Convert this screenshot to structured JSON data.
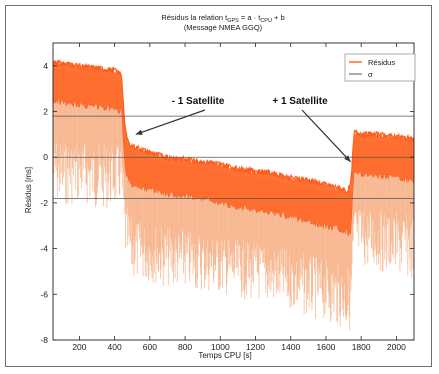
{
  "chart_data": {
    "type": "line",
    "title_line1_prefix": "Résidus la relation t",
    "title_sub_gps": "GPS",
    "title_mid": " = a · t",
    "title_sub_cpu": "CPU",
    "title_suffix": " + b",
    "title_line2": "(Message NMEA GGQ)",
    "xlabel": "Temps CPU [s]",
    "ylabel": "Résidus [ms]",
    "xlim": [
      50,
      2100
    ],
    "ylim": [
      -8,
      5
    ],
    "xticks": [
      200,
      400,
      600,
      800,
      1000,
      1200,
      1400,
      1600,
      1800,
      2000
    ],
    "yticks": [
      4,
      2,
      0,
      -2,
      -4,
      -6,
      -8
    ],
    "grid": false,
    "legend_position": "top-right",
    "series": [
      {
        "name": "Résidus",
        "color": "#ff6a2a",
        "x": [
          50,
          100,
          200,
          300,
          400,
          440,
          460,
          480,
          500,
          600,
          700,
          800,
          900,
          1000,
          1100,
          1200,
          1300,
          1400,
          1500,
          1600,
          1700,
          1720,
          1740,
          1760,
          1800,
          1900,
          2000,
          2100
        ],
        "upper": [
          4.2,
          4.1,
          4.0,
          3.9,
          3.8,
          3.6,
          1.2,
          0.6,
          0.5,
          0.2,
          0.0,
          -0.1,
          -0.2,
          -0.3,
          -0.5,
          -0.6,
          -0.7,
          -0.9,
          -1.0,
          -1.2,
          -1.4,
          -1.5,
          -1.2,
          1.1,
          1.0,
          1.0,
          0.9,
          0.8
        ],
        "lower": [
          2.5,
          2.4,
          2.3,
          2.2,
          2.1,
          2.0,
          -0.5,
          -1.0,
          -1.2,
          -1.4,
          -1.6,
          -1.7,
          -1.8,
          -2.0,
          -2.2,
          -2.3,
          -2.4,
          -2.6,
          -2.8,
          -3.0,
          -3.2,
          -3.3,
          -3.3,
          -0.6,
          -0.7,
          -0.8,
          -0.9,
          -1.0
        ],
        "spike_min": [
          -2.0,
          -2.2,
          -2.0,
          -2.3,
          -2.2,
          -2.0,
          -4.5,
          -5.0,
          -5.4,
          -5.5,
          -5.7,
          -5.8,
          -5.9,
          -6.0,
          -6.2,
          -6.3,
          -6.5,
          -6.7,
          -7.0,
          -7.2,
          -7.5,
          -7.6,
          -7.6,
          -4.5,
          -4.8,
          -5.0,
          -5.2,
          -5.4
        ]
      },
      {
        "name": "σ",
        "color": "#555555",
        "levels": [
          1.8,
          0,
          -1.8
        ]
      }
    ],
    "annotations": [
      {
        "text": "- 1 Satellite",
        "target_x": 520,
        "target_y": 1.0
      },
      {
        "text": "+ 1 Satellite",
        "target_x": 1740,
        "target_y": -0.2
      }
    ]
  }
}
